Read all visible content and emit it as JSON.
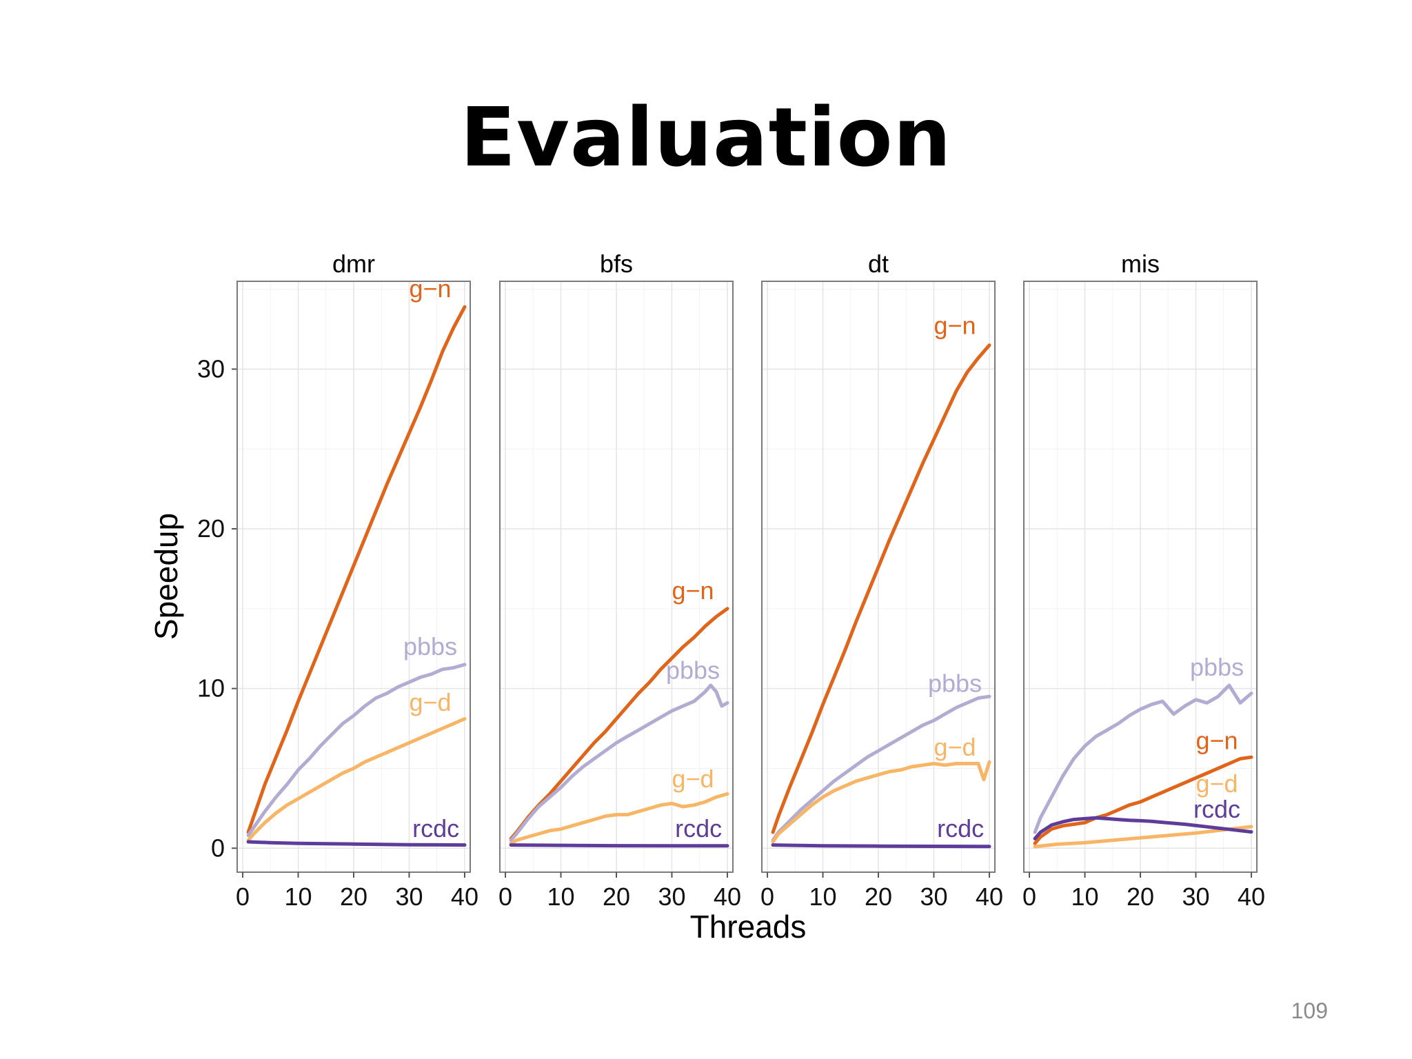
{
  "slide": {
    "title": "Evaluation",
    "page_number": "109"
  },
  "colors": {
    "g-n": "#e0651a",
    "pbbs": "#b2abd2",
    "g-d": "#f7b565",
    "rcdc": "#5e3c99"
  },
  "chart_data": {
    "type": "line",
    "xlabel": "Threads",
    "ylabel": "Speedup",
    "xlim": [
      -1,
      41
    ],
    "ylim": [
      -1.5,
      35.5
    ],
    "x_ticks": [
      0,
      10,
      20,
      30,
      40
    ],
    "y_ticks": [
      0,
      10,
      20,
      30
    ],
    "y_tick_labels": [
      "0",
      "10",
      "20",
      "30"
    ],
    "x_tick_labels": [
      "0",
      "10",
      "20",
      "30",
      "40"
    ],
    "grid": true,
    "panels": [
      {
        "title": "dmr",
        "series": [
          {
            "name": "g−n",
            "x": [
              1,
              2,
              4,
              6,
              8,
              10,
              12,
              14,
              16,
              18,
              20,
              22,
              24,
              26,
              28,
              30,
              32,
              34,
              36,
              38,
              40
            ],
            "values": [
              1.0,
              2.0,
              4.0,
              5.7,
              7.4,
              9.2,
              10.9,
              12.6,
              14.3,
              16.0,
              17.7,
              19.4,
              21.1,
              22.8,
              24.4,
              26.0,
              27.6,
              29.3,
              31.1,
              32.6,
              33.9
            ]
          },
          {
            "name": "pbbs",
            "x": [
              1,
              2,
              4,
              6,
              8,
              10,
              12,
              14,
              16,
              18,
              20,
              22,
              24,
              26,
              28,
              30,
              32,
              34,
              36,
              38,
              40
            ],
            "values": [
              0.8,
              1.3,
              2.3,
              3.2,
              4.0,
              4.9,
              5.6,
              6.4,
              7.1,
              7.8,
              8.3,
              8.9,
              9.4,
              9.7,
              10.1,
              10.4,
              10.7,
              10.9,
              11.2,
              11.3,
              11.5
            ]
          },
          {
            "name": "g−d",
            "x": [
              1,
              2,
              4,
              6,
              8,
              10,
              12,
              14,
              16,
              18,
              20,
              22,
              24,
              26,
              28,
              30,
              32,
              34,
              36,
              38,
              40
            ],
            "values": [
              0.5,
              0.9,
              1.6,
              2.2,
              2.7,
              3.1,
              3.5,
              3.9,
              4.3,
              4.7,
              5.0,
              5.4,
              5.7,
              6.0,
              6.3,
              6.6,
              6.9,
              7.2,
              7.5,
              7.8,
              8.1
            ]
          },
          {
            "name": "rcdc",
            "x": [
              1,
              5,
              10,
              15,
              20,
              25,
              30,
              35,
              40
            ],
            "values": [
              0.4,
              0.35,
              0.3,
              0.28,
              0.26,
              0.24,
              0.22,
              0.21,
              0.2
            ]
          }
        ],
        "labels": [
          {
            "text": "g−n",
            "x": 33.8,
            "y": 34.5,
            "series": "g-n"
          },
          {
            "text": "pbbs",
            "x": 33.8,
            "y": 12.1,
            "series": "pbbs"
          },
          {
            "text": "g−d",
            "x": 33.8,
            "y": 8.6,
            "series": "g-d"
          },
          {
            "text": "rcdc",
            "x": 34.8,
            "y": 0.7,
            "series": "rcdc"
          }
        ]
      },
      {
        "title": "bfs",
        "series": [
          {
            "name": "g−n",
            "x": [
              1,
              2,
              4,
              6,
              8,
              10,
              12,
              14,
              16,
              18,
              20,
              22,
              24,
              26,
              28,
              30,
              32,
              34,
              36,
              38,
              40
            ],
            "values": [
              0.6,
              1.0,
              1.9,
              2.7,
              3.4,
              4.2,
              5.0,
              5.8,
              6.6,
              7.3,
              8.1,
              8.9,
              9.7,
              10.4,
              11.2,
              11.9,
              12.6,
              13.2,
              13.9,
              14.5,
              15.0
            ]
          },
          {
            "name": "pbbs",
            "x": [
              1,
              2,
              4,
              6,
              8,
              10,
              12,
              14,
              16,
              18,
              20,
              22,
              24,
              26,
              28,
              30,
              32,
              34,
              36,
              37,
              38,
              39,
              40
            ],
            "values": [
              0.5,
              0.9,
              1.8,
              2.6,
              3.2,
              3.8,
              4.5,
              5.1,
              5.6,
              6.1,
              6.6,
              7.0,
              7.4,
              7.8,
              8.2,
              8.6,
              8.9,
              9.2,
              9.8,
              10.2,
              9.8,
              8.9,
              9.1
            ]
          },
          {
            "name": "g−d",
            "x": [
              1,
              2,
              4,
              6,
              8,
              10,
              12,
              14,
              16,
              18,
              20,
              22,
              24,
              26,
              28,
              30,
              32,
              34,
              36,
              38,
              40
            ],
            "values": [
              0.3,
              0.5,
              0.7,
              0.9,
              1.1,
              1.2,
              1.4,
              1.6,
              1.8,
              2.0,
              2.1,
              2.1,
              2.3,
              2.5,
              2.7,
              2.8,
              2.6,
              2.7,
              2.9,
              3.2,
              3.4
            ]
          },
          {
            "name": "rcdc",
            "x": [
              1,
              10,
              20,
              30,
              40
            ],
            "values": [
              0.2,
              0.18,
              0.16,
              0.15,
              0.15
            ]
          }
        ],
        "labels": [
          {
            "text": "g−n",
            "x": 33.8,
            "y": 15.6,
            "series": "g-n"
          },
          {
            "text": "pbbs",
            "x": 33.8,
            "y": 10.6,
            "series": "pbbs"
          },
          {
            "text": "g−d",
            "x": 33.8,
            "y": 3.8,
            "series": "g-d"
          },
          {
            "text": "rcdc",
            "x": 34.8,
            "y": 0.7,
            "series": "rcdc"
          }
        ]
      },
      {
        "title": "dt",
        "series": [
          {
            "name": "g−n",
            "x": [
              1,
              2,
              4,
              6,
              8,
              10,
              12,
              14,
              16,
              18,
              20,
              22,
              24,
              26,
              28,
              30,
              32,
              34,
              36,
              38,
              40
            ],
            "values": [
              1.0,
              2.0,
              3.8,
              5.5,
              7.2,
              9.0,
              10.7,
              12.4,
              14.2,
              15.9,
              17.6,
              19.3,
              20.9,
              22.5,
              24.1,
              25.6,
              27.1,
              28.6,
              29.8,
              30.7,
              31.5
            ]
          },
          {
            "name": "pbbs",
            "x": [
              1,
              2,
              4,
              6,
              8,
              10,
              12,
              14,
              16,
              18,
              20,
              22,
              24,
              26,
              28,
              30,
              32,
              34,
              36,
              38,
              40
            ],
            "values": [
              0.5,
              1.0,
              1.7,
              2.4,
              3.0,
              3.6,
              4.2,
              4.7,
              5.2,
              5.7,
              6.1,
              6.5,
              6.9,
              7.3,
              7.7,
              8.0,
              8.4,
              8.8,
              9.1,
              9.4,
              9.5
            ]
          },
          {
            "name": "g−d",
            "x": [
              1,
              2,
              4,
              6,
              8,
              10,
              12,
              14,
              16,
              18,
              20,
              22,
              24,
              26,
              28,
              30,
              32,
              34,
              36,
              38,
              39,
              40
            ],
            "values": [
              0.4,
              0.9,
              1.5,
              2.1,
              2.7,
              3.2,
              3.6,
              3.9,
              4.2,
              4.4,
              4.6,
              4.8,
              4.9,
              5.1,
              5.2,
              5.3,
              5.2,
              5.3,
              5.3,
              5.3,
              4.3,
              5.4
            ]
          },
          {
            "name": "rcdc",
            "x": [
              1,
              10,
              20,
              30,
              40
            ],
            "values": [
              0.2,
              0.15,
              0.13,
              0.12,
              0.11
            ]
          }
        ],
        "labels": [
          {
            "text": "g−n",
            "x": 33.8,
            "y": 32.2,
            "series": "g-n"
          },
          {
            "text": "pbbs",
            "x": 33.8,
            "y": 9.8,
            "series": "pbbs"
          },
          {
            "text": "g−d",
            "x": 33.8,
            "y": 5.8,
            "series": "g-d"
          },
          {
            "text": "rcdc",
            "x": 34.8,
            "y": 0.7,
            "series": "rcdc"
          }
        ]
      },
      {
        "title": "mis",
        "series": [
          {
            "name": "pbbs",
            "x": [
              1,
              2,
              4,
              6,
              8,
              10,
              12,
              14,
              16,
              18,
              20,
              22,
              24,
              26,
              28,
              30,
              32,
              34,
              36,
              38,
              40
            ],
            "values": [
              1.0,
              1.9,
              3.2,
              4.5,
              5.6,
              6.4,
              7.0,
              7.4,
              7.8,
              8.3,
              8.7,
              9.0,
              9.2,
              8.4,
              8.9,
              9.3,
              9.1,
              9.5,
              10.2,
              9.1,
              9.7
            ]
          },
          {
            "name": "g−n",
            "x": [
              1,
              2,
              4,
              6,
              8,
              10,
              12,
              14,
              16,
              18,
              20,
              22,
              24,
              26,
              28,
              30,
              32,
              34,
              36,
              38,
              40
            ],
            "values": [
              0.3,
              0.7,
              1.2,
              1.4,
              1.5,
              1.6,
              1.9,
              2.1,
              2.4,
              2.7,
              2.9,
              3.2,
              3.5,
              3.8,
              4.1,
              4.4,
              4.7,
              5.0,
              5.3,
              5.6,
              5.7
            ]
          },
          {
            "name": "g−d",
            "x": [
              1,
              5,
              10,
              15,
              20,
              25,
              30,
              35,
              40
            ],
            "values": [
              0.1,
              0.25,
              0.35,
              0.5,
              0.65,
              0.8,
              0.95,
              1.15,
              1.35
            ]
          },
          {
            "name": "rcdc",
            "x": [
              1,
              2,
              4,
              6,
              8,
              10,
              12,
              14,
              16,
              18,
              20,
              22,
              24,
              26,
              28,
              30,
              32,
              34,
              36,
              38,
              40
            ],
            "values": [
              0.6,
              1.0,
              1.45,
              1.65,
              1.8,
              1.85,
              1.9,
              1.85,
              1.8,
              1.75,
              1.72,
              1.68,
              1.62,
              1.56,
              1.5,
              1.42,
              1.34,
              1.26,
              1.18,
              1.1,
              1.02
            ]
          }
        ],
        "labels": [
          {
            "text": "pbbs",
            "x": 33.8,
            "y": 10.8,
            "series": "pbbs"
          },
          {
            "text": "g−n",
            "x": 33.8,
            "y": 6.2,
            "series": "g-n"
          },
          {
            "text": "g−d",
            "x": 33.8,
            "y": 3.5,
            "series": "g-d"
          },
          {
            "text": "rcdc",
            "x": 33.8,
            "y": 1.9,
            "series": "rcdc"
          }
        ]
      }
    ]
  }
}
